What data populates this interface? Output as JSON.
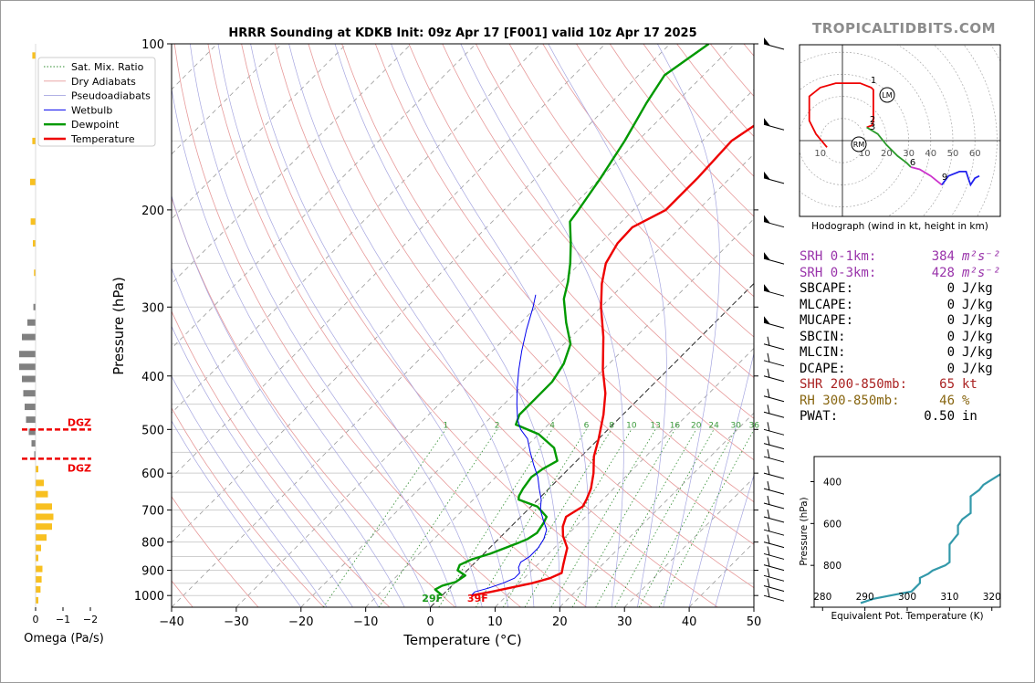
{
  "chart_data": [
    {
      "type": "line",
      "title": "HRRR Sounding at KDKB Init: 09z Apr 17 [F001] valid 10z Apr 17 2025",
      "xlabel": "Temperature (°C)",
      "ylabel": "Pressure (hPa)",
      "xlim": [
        -40,
        50
      ],
      "ylim": [
        1050,
        100
      ],
      "y_scale": "log",
      "x_ticks": [
        "−40",
        "−30",
        "−20",
        "−10",
        "0",
        "10",
        "20",
        "30",
        "40",
        "50"
      ],
      "y_ticks": [
        "100",
        "200",
        "300",
        "400",
        "500",
        "600",
        "700",
        "800",
        "900",
        "1000"
      ],
      "legend": [
        "Sat. Mix. Ratio",
        "Dry Adiabats",
        "Pseudoadiabats",
        "Wetbulb",
        "Dewpoint",
        "Temperature"
      ],
      "legend_position": "top-left",
      "mixing_ratio_labels": [
        "1",
        "2",
        "4",
        "6",
        "8",
        "10",
        "13",
        "16",
        "20",
        "24",
        "30",
        "36"
      ],
      "surface_dewpoint_label": "29F",
      "surface_temperature_label": "39F",
      "series": [
        {
          "name": "Temperature",
          "color": "#ee0000",
          "points": [
            [
              4.5,
              1000
            ],
            [
              7,
              985
            ],
            [
              12,
              950
            ],
            [
              14,
              930
            ],
            [
              15,
              910
            ],
            [
              14,
              880
            ],
            [
              13,
              850
            ],
            [
              12,
              820
            ],
            [
              9.5,
              780
            ],
            [
              8,
              750
            ],
            [
              7,
              720
            ],
            [
              8,
              690
            ],
            [
              7.5,
              670
            ],
            [
              6.5,
              640
            ],
            [
              4.5,
              600
            ],
            [
              2,
              560
            ],
            [
              0,
              520
            ],
            [
              -3,
              470
            ],
            [
              -6,
              430
            ],
            [
              -10,
              390
            ],
            [
              -15,
              340
            ],
            [
              -20,
              300
            ],
            [
              -23.5,
              272
            ],
            [
              -26,
              250
            ],
            [
              -27.3,
              230
            ],
            [
              -27.5,
              215
            ],
            [
              -25,
              200
            ],
            [
              -25,
              175
            ],
            [
              -25.5,
              150
            ],
            [
              -23.5,
              134
            ],
            [
              -17,
              115
            ],
            [
              -13,
              100
            ]
          ]
        },
        {
          "name": "Dewpoint",
          "color": "#009900",
          "points": [
            [
              0,
              1000
            ],
            [
              -2,
              975
            ],
            [
              -1.5,
              960
            ],
            [
              0,
              945
            ],
            [
              0.5,
              920
            ],
            [
              -1.5,
              900
            ],
            [
              -2,
              880
            ],
            [
              -1,
              860
            ],
            [
              1,
              840
            ],
            [
              3.5,
              805
            ],
            [
              4.5,
              790
            ],
            [
              5,
              770
            ],
            [
              4.5,
              740
            ],
            [
              4,
              720
            ],
            [
              1,
              690
            ],
            [
              -3,
              670
            ],
            [
              -3.5,
              660
            ],
            [
              -4,
              640
            ],
            [
              -4.5,
              610
            ],
            [
              -4,
              590
            ],
            [
              -3,
              570
            ],
            [
              -5.5,
              540
            ],
            [
              -10,
              510
            ],
            [
              -15,
              490
            ],
            [
              -16,
              470
            ],
            [
              -16,
              440
            ],
            [
              -16,
              410
            ],
            [
              -17,
              380
            ],
            [
              -19,
              350
            ],
            [
              -23,
              320
            ],
            [
              -27,
              290
            ],
            [
              -29,
              270
            ],
            [
              -31.5,
              250
            ],
            [
              -34.5,
              230
            ],
            [
              -38,
              210
            ],
            [
              -38.5,
              200
            ],
            [
              -40,
              175
            ],
            [
              -42,
              150
            ],
            [
              -44.5,
              128
            ],
            [
              -46,
              114
            ],
            [
              -44,
              100
            ]
          ]
        },
        {
          "name": "Wetbulb",
          "color": "#0000ee",
          "points": [
            [
              4.5,
              1000
            ],
            [
              4.5,
              985
            ],
            [
              6,
              970
            ],
            [
              7.5,
              950
            ],
            [
              8.5,
              930
            ],
            [
              8.5,
              910
            ],
            [
              7.5,
              890
            ],
            [
              7,
              870
            ],
            [
              7.5,
              850
            ],
            [
              7.5,
              820
            ],
            [
              7,
              790
            ],
            [
              6,
              760
            ],
            [
              4,
              730
            ],
            [
              2,
              700
            ],
            [
              0.5,
              670
            ],
            [
              -1.5,
              640
            ],
            [
              -3.5,
              610
            ],
            [
              -6,
              580
            ],
            [
              -8.5,
              550
            ],
            [
              -11,
              520
            ],
            [
              -13.5,
              500
            ],
            [
              -15.5,
              480
            ],
            [
              -18,
              450
            ],
            [
              -20.5,
              420
            ],
            [
              -23,
              390
            ],
            [
              -25.5,
              360
            ],
            [
              -28,
              330
            ],
            [
              -30.5,
              300
            ],
            [
              -32,
              285
            ]
          ]
        }
      ]
    },
    {
      "type": "bar",
      "xlabel": "Omega (Pa/s)",
      "x_ticks": [
        "0",
        "−1",
        "−2"
      ],
      "dgz_label": "DGZ",
      "dgz_pressures": [
        500,
        565
      ],
      "values": [
        {
          "p": 105,
          "w": 0.12,
          "c": "#f8c020"
        },
        {
          "p": 150,
          "w": 0.12,
          "c": "#f8c020"
        },
        {
          "p": 178,
          "w": 0.2,
          "c": "#f8c020"
        },
        {
          "p": 210,
          "w": 0.18,
          "c": "#f8c020"
        },
        {
          "p": 230,
          "w": 0.1,
          "c": "#f8c020"
        },
        {
          "p": 260,
          "w": 0.06,
          "c": "#f8c020"
        },
        {
          "p": 300,
          "w": 0.08,
          "c": "#808080"
        },
        {
          "p": 320,
          "w": 0.3,
          "c": "#808080"
        },
        {
          "p": 340,
          "w": 0.5,
          "c": "#808080"
        },
        {
          "p": 365,
          "w": 0.6,
          "c": "#808080"
        },
        {
          "p": 385,
          "w": 0.6,
          "c": "#808080"
        },
        {
          "p": 405,
          "w": 0.5,
          "c": "#808080"
        },
        {
          "p": 430,
          "w": 0.45,
          "c": "#808080"
        },
        {
          "p": 455,
          "w": 0.4,
          "c": "#808080"
        },
        {
          "p": 480,
          "w": 0.35,
          "c": "#808080"
        },
        {
          "p": 505,
          "w": 0.25,
          "c": "#808080"
        },
        {
          "p": 530,
          "w": 0.15,
          "c": "#808080"
        },
        {
          "p": 555,
          "w": 0.05,
          "c": "#808080"
        },
        {
          "p": 590,
          "w": -0.1,
          "c": "#f8c020"
        },
        {
          "p": 625,
          "w": -0.3,
          "c": "#f8c020"
        },
        {
          "p": 655,
          "w": -0.45,
          "c": "#f8c020"
        },
        {
          "p": 690,
          "w": -0.6,
          "c": "#f8c020"
        },
        {
          "p": 720,
          "w": -0.65,
          "c": "#f8c020"
        },
        {
          "p": 750,
          "w": -0.6,
          "c": "#f8c020"
        },
        {
          "p": 785,
          "w": -0.4,
          "c": "#f8c020"
        },
        {
          "p": 820,
          "w": -0.2,
          "c": "#f8c020"
        },
        {
          "p": 855,
          "w": -0.1,
          "c": "#f8c020"
        },
        {
          "p": 895,
          "w": -0.25,
          "c": "#f8c020"
        },
        {
          "p": 935,
          "w": -0.22,
          "c": "#f8c020"
        },
        {
          "p": 975,
          "w": -0.18,
          "c": "#f8c020"
        },
        {
          "p": 1020,
          "w": -0.1,
          "c": "#f8c020"
        }
      ]
    },
    {
      "type": "line",
      "title": "Hodograph (wind in kt, height in km)",
      "ring_labels": [
        "10",
        "10",
        "20",
        "30",
        "40",
        "50",
        "60"
      ],
      "height_labels": [
        "1",
        "2",
        "3",
        "6",
        "9"
      ],
      "storm_motion_labels": [
        "LM",
        "RM"
      ],
      "segments": [
        {
          "color": "#ee0000",
          "points": [
            [
              -7,
              -3
            ],
            [
              -12,
              3
            ],
            [
              -15,
              9
            ],
            [
              -15,
              20
            ],
            [
              -10,
              24
            ],
            [
              -3,
              26
            ],
            [
              8,
              26
            ],
            [
              13,
              24
            ],
            [
              14,
              23
            ],
            [
              14,
              20
            ],
            [
              14,
              13
            ],
            [
              14,
              9
            ],
            [
              13.5,
              7
            ],
            [
              11,
              6
            ]
          ]
        },
        {
          "color": "#2a9a2a",
          "points": [
            [
              11,
              6
            ],
            [
              16,
              3
            ],
            [
              20,
              -2
            ],
            [
              25,
              -7
            ],
            [
              29,
              -10
            ],
            [
              31,
              -12
            ]
          ]
        },
        {
          "color": "#cc33cc",
          "points": [
            [
              31,
              -12
            ],
            [
              35,
              -13
            ],
            [
              40,
              -16
            ],
            [
              45,
              -20
            ]
          ]
        },
        {
          "color": "#2222ee",
          "points": [
            [
              45,
              -20
            ],
            [
              48,
              -16
            ],
            [
              53,
              -14
            ],
            [
              56,
              -14
            ],
            [
              57,
              -17
            ],
            [
              58,
              -20
            ],
            [
              60,
              -17
            ],
            [
              62,
              -16
            ]
          ]
        }
      ]
    },
    {
      "type": "line",
      "xlabel": "Equivalent Pot. Temperature (K)",
      "ylabel": "Pressure (hPa)",
      "xlim": [
        278,
        322
      ],
      "x_ticks": [
        "280",
        "290",
        "300",
        "310",
        "320"
      ],
      "y_ticks": [
        "400",
        "600",
        "800"
      ],
      "series": [
        {
          "name": "theta-e",
          "color": "#3399aa",
          "points": [
            [
              289,
              980
            ],
            [
              292,
              960
            ],
            [
              297,
              940
            ],
            [
              301,
              925
            ],
            [
              302,
              905
            ],
            [
              303,
              885
            ],
            [
              303,
              860
            ],
            [
              305,
              840
            ],
            [
              306,
              825
            ],
            [
              309,
              800
            ],
            [
              310,
              785
            ],
            [
              310,
              760
            ],
            [
              310,
              730
            ],
            [
              310,
              700
            ],
            [
              311,
              675
            ],
            [
              312,
              650
            ],
            [
              312,
              610
            ],
            [
              313,
              580
            ],
            [
              315,
              550
            ],
            [
              315,
              510
            ],
            [
              315,
              470
            ],
            [
              317,
              440
            ],
            [
              318,
              415
            ],
            [
              320,
              390
            ],
            [
              322,
              365
            ],
            [
              324,
              330
            ]
          ]
        }
      ]
    }
  ],
  "stats": [
    {
      "label": "SRH 0-1km:",
      "value": "384",
      "unit": "m²s⁻²",
      "color": "#9933aa"
    },
    {
      "label": "SRH 0-3km:",
      "value": "428",
      "unit": "m²s⁻²",
      "color": "#9933aa"
    },
    {
      "label": "SBCAPE:",
      "value": "0",
      "unit": "J/kg",
      "color": "#000000"
    },
    {
      "label": "MLCAPE:",
      "value": "0",
      "unit": "J/kg",
      "color": "#000000"
    },
    {
      "label": "MUCAPE:",
      "value": "0",
      "unit": "J/kg",
      "color": "#000000"
    },
    {
      "label": "SBCIN:",
      "value": "0",
      "unit": "J/kg",
      "color": "#000000"
    },
    {
      "label": "MLCIN:",
      "value": "0",
      "unit": "J/kg",
      "color": "#000000"
    },
    {
      "label": "DCAPE:",
      "value": "0",
      "unit": "J/kg",
      "color": "#000000"
    },
    {
      "label": "SHR 200-850mb:",
      "value": "65",
      "unit": "kt",
      "color": "#aa2222"
    },
    {
      "label": "RH 300-850mb:",
      "value": "46",
      "unit": "%",
      "color": "#886611"
    },
    {
      "label": "PWAT:",
      "value": "0.50",
      "unit": "in",
      "color": "#000000"
    }
  ],
  "brand": "TROPICALTIDBITS.COM"
}
